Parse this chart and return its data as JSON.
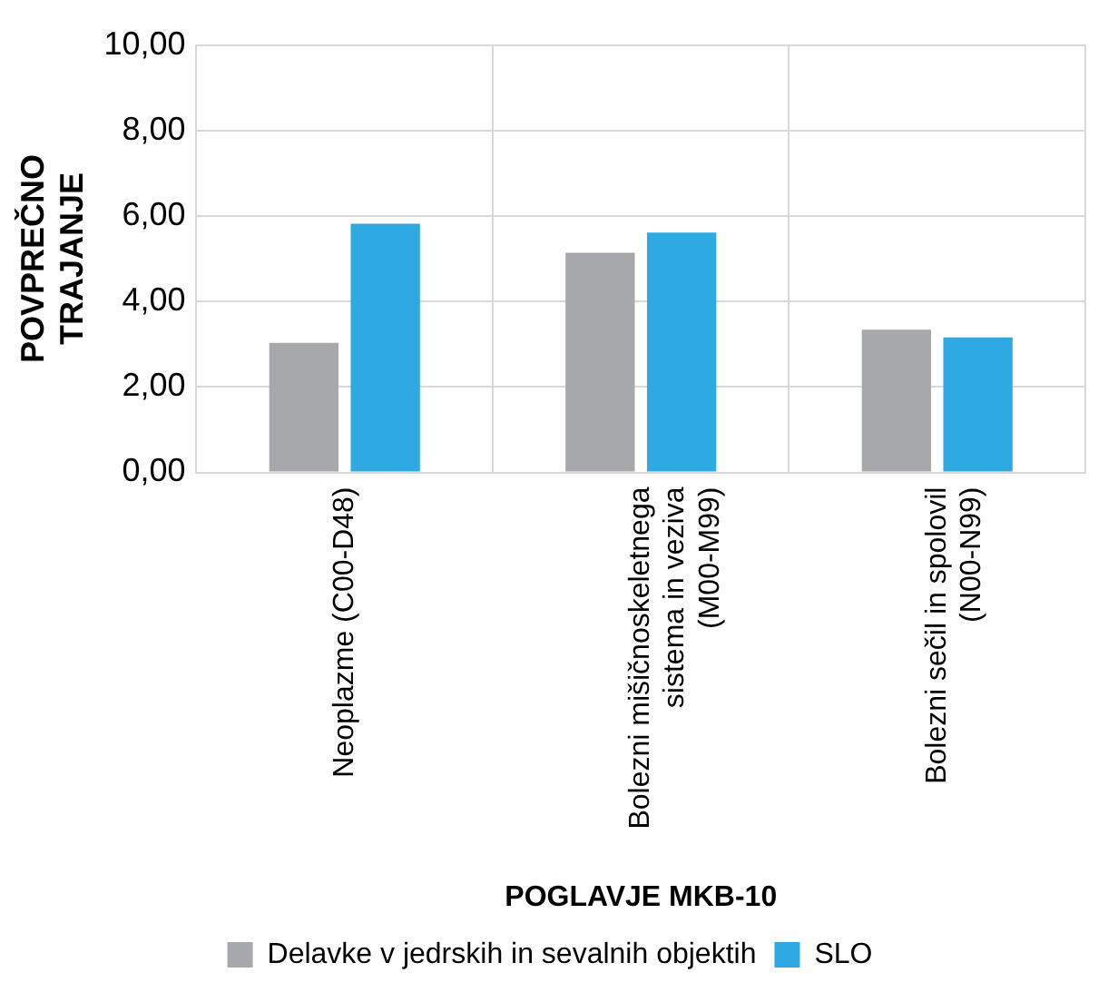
{
  "chart_data": {
    "type": "bar",
    "xlabel": "POGLAVJE MKB-10",
    "ylabel": "POVPREČNO TRAJANJE",
    "categories": [
      "Neoplazme (C00-D48)",
      "Bolezni mišičnoskeletnega sistema in veziva (M00-M99)",
      "Bolezni sečil in spolovil (N00-N99)"
    ],
    "series": [
      {
        "name": "Delavke v jedrskih in sevalnih objektih",
        "color": "#a6a8ab",
        "values": [
          3.03,
          5.14,
          3.34
        ]
      },
      {
        "name": "SLO",
        "color": "#2ea9e1",
        "values": [
          5.82,
          5.61,
          3.16
        ]
      }
    ],
    "ylim": [
      0,
      10
    ],
    "yticks": [
      {
        "value": 0,
        "label": "0,00"
      },
      {
        "value": 2,
        "label": "2,00"
      },
      {
        "value": 4,
        "label": "4,00"
      },
      {
        "value": 6,
        "label": "6,00"
      },
      {
        "value": 8,
        "label": "8,00"
      },
      {
        "value": 10,
        "label": "10,00"
      }
    ],
    "grid": true,
    "legend": "bottom"
  }
}
